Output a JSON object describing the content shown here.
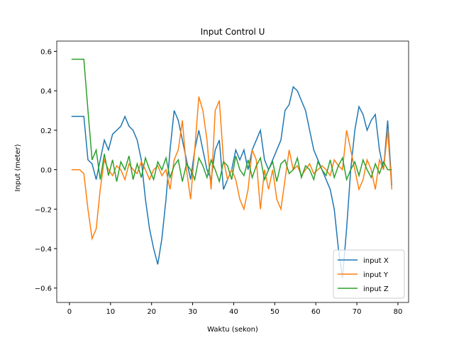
{
  "chart_data": {
    "type": "line",
    "title": "Input Control U",
    "xlabel": "Waktu (sekon)",
    "ylabel": "Input (meter)",
    "x": [
      0.5,
      1.5,
      2.5,
      3.5,
      4.5,
      5.5,
      6.5,
      7.5,
      8.5,
      9.5,
      10.5,
      11.5,
      12.5,
      13.5,
      14.5,
      15.5,
      16.5,
      17.5,
      18.5,
      19.5,
      20.5,
      21.5,
      22.5,
      23.5,
      24.5,
      25.5,
      26.5,
      27.5,
      28.5,
      29.5,
      30.5,
      31.5,
      32.5,
      33.5,
      34.5,
      35.5,
      36.5,
      37.5,
      38.5,
      39.5,
      40.5,
      41.5,
      42.5,
      43.5,
      44.5,
      45.5,
      46.5,
      47.5,
      48.5,
      49.5,
      50.5,
      51.5,
      52.5,
      53.5,
      54.5,
      55.5,
      56.5,
      57.5,
      58.5,
      59.5,
      60.5,
      61.5,
      62.5,
      63.5,
      64.5,
      65.5,
      66.5,
      67.5,
      68.5,
      69.5,
      70.5,
      71.5,
      72.5,
      73.5,
      74.5,
      75.5,
      76.5,
      77.5,
      78.5
    ],
    "series": [
      {
        "name": "input X",
        "color": "#1f77b4",
        "values": [
          0.27,
          0.27,
          0.27,
          0.27,
          0.05,
          0.03,
          -0.05,
          0.05,
          0.15,
          0.1,
          0.18,
          0.2,
          0.22,
          0.27,
          0.22,
          0.2,
          0.15,
          0.05,
          -0.15,
          -0.3,
          -0.4,
          -0.48,
          -0.35,
          -0.15,
          0.1,
          0.3,
          0.25,
          0.15,
          0.05,
          -0.05,
          0.1,
          0.2,
          0.1,
          0.0,
          -0.05,
          0.1,
          0.15,
          -0.1,
          -0.05,
          0.0,
          0.1,
          0.05,
          0.1,
          0.0,
          0.1,
          0.15,
          0.2,
          0.05,
          0.0,
          0.05,
          0.1,
          0.15,
          0.3,
          0.33,
          0.42,
          0.4,
          0.35,
          0.3,
          0.2,
          0.1,
          0.05,
          0.0,
          -0.05,
          -0.1,
          -0.2,
          -0.4,
          -0.55,
          -0.3,
          0.0,
          0.2,
          0.32,
          0.28,
          0.2,
          0.25,
          0.28,
          0.1,
          0.0,
          0.25,
          -0.08
        ]
      },
      {
        "name": "input Y",
        "color": "#ff7f0e",
        "values": [
          0.0,
          0.0,
          0.0,
          -0.02,
          -0.2,
          -0.35,
          -0.3,
          -0.1,
          0.05,
          0.0,
          -0.03,
          0.02,
          0.0,
          -0.05,
          0.03,
          0.0,
          -0.02,
          0.04,
          0.0,
          -0.05,
          0.0,
          0.02,
          -0.03,
          0.0,
          -0.1,
          0.05,
          0.1,
          0.25,
          0.0,
          -0.15,
          0.1,
          0.37,
          0.3,
          0.15,
          -0.1,
          0.3,
          0.35,
          0.05,
          -0.05,
          0.0,
          -0.05,
          -0.15,
          -0.2,
          -0.1,
          0.1,
          0.05,
          -0.2,
          0.0,
          -0.1,
          0.0,
          -0.15,
          -0.2,
          -0.05,
          0.1,
          0.0,
          0.02,
          -0.03,
          0.0,
          0.03,
          -0.02,
          0.0,
          0.02,
          0.0,
          -0.03,
          0.05,
          0.02,
          0.0,
          0.2,
          0.1,
          0.0,
          -0.1,
          -0.05,
          0.05,
          0.0,
          -0.1,
          0.05,
          0.0,
          0.2,
          -0.1
        ]
      },
      {
        "name": "input Z",
        "color": "#2ca02c",
        "values": [
          0.56,
          0.56,
          0.56,
          0.56,
          0.3,
          0.05,
          0.1,
          -0.05,
          0.08,
          -0.03,
          0.05,
          -0.06,
          0.04,
          0.0,
          0.07,
          -0.05,
          0.03,
          -0.04,
          0.06,
          0.0,
          -0.05,
          0.04,
          0.0,
          0.06,
          -0.04,
          0.02,
          0.05,
          -0.06,
          0.03,
          0.0,
          -0.05,
          0.06,
          0.02,
          -0.04,
          0.05,
          0.0,
          -0.06,
          0.04,
          0.02,
          -0.05,
          0.07,
          0.0,
          -0.03,
          0.05,
          -0.04,
          0.02,
          0.06,
          -0.05,
          0.0,
          0.04,
          -0.06,
          0.03,
          0.05,
          -0.02,
          0.0,
          0.06,
          -0.04,
          0.02,
          0.0,
          -0.05,
          0.04,
          0.0,
          -0.03,
          0.05,
          -0.04,
          0.02,
          0.06,
          -0.05,
          0.0,
          0.04,
          -0.03,
          0.05,
          0.0,
          -0.04,
          0.03,
          -0.02,
          0.04,
          0.0,
          0.0
        ]
      }
    ],
    "xlim": [
      -3.1,
      82.6
    ],
    "ylim": [
      -0.673,
      0.652
    ],
    "xticks": [
      0,
      10,
      20,
      30,
      40,
      50,
      60,
      70,
      80
    ],
    "yticks": [
      {
        "value": -0.6,
        "label": "−0.6"
      },
      {
        "value": -0.4,
        "label": "−0.4"
      },
      {
        "value": -0.2,
        "label": "−0.2"
      },
      {
        "value": 0,
        "label": "0.0"
      },
      {
        "value": 0.2,
        "label": "0.2"
      },
      {
        "value": 0.4,
        "label": "0.4"
      },
      {
        "value": 0.6,
        "label": "0.6"
      }
    ],
    "legend": "lower right"
  }
}
